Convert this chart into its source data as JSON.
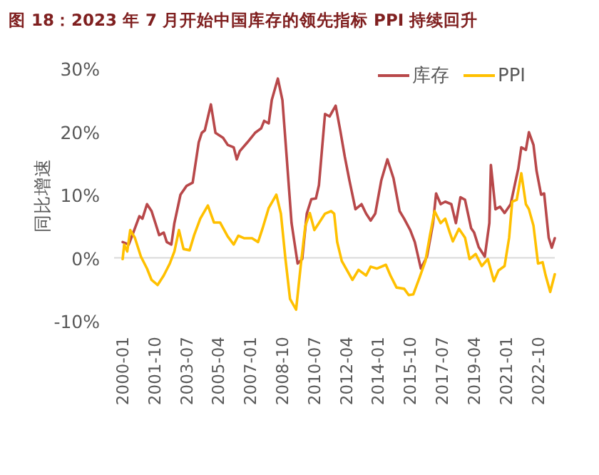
{
  "chart_data": {
    "type": "line",
    "title": "图 18：2023 年 7 月开始中国库存的领先指标 PPI 持续回升",
    "ylabel": "同比增速",
    "xlim": [
      "2000-01",
      "2023-09"
    ],
    "xticks": [
      "2000-01",
      "2001-10",
      "2003-07",
      "2005-04",
      "2007-01",
      "2008-10",
      "2010-07",
      "2012-04",
      "2014-01",
      "2015-10",
      "2017-07",
      "2019-04",
      "2021-01",
      "2022-10"
    ],
    "ylim": [
      -10,
      30
    ],
    "yticks": [
      {
        "value": -10,
        "label": "-10%"
      },
      {
        "value": 0,
        "label": "0%"
      },
      {
        "value": 10,
        "label": "10%"
      },
      {
        "value": 20,
        "label": "20%"
      },
      {
        "value": 30,
        "label": "30%"
      }
    ],
    "legend": "top right",
    "marker": "none",
    "line_style": "solid",
    "series": [
      {
        "name": "库存",
        "color": "#b8484a",
        "x": [
          "2000-01",
          "2000-05",
          "2000-08",
          "2000-12",
          "2001-02",
          "2001-05",
          "2001-08",
          "2001-10",
          "2002-01",
          "2002-04",
          "2002-06",
          "2002-09",
          "2002-11",
          "2003-03",
          "2003-07",
          "2003-11",
          "2004-03",
          "2004-05",
          "2004-07",
          "2004-11",
          "2005-02",
          "2005-07",
          "2005-10",
          "2006-02",
          "2006-04",
          "2006-06",
          "2006-11",
          "2007-04",
          "2007-08",
          "2007-10",
          "2008-01",
          "2008-03",
          "2008-07",
          "2008-10",
          "2009-01",
          "2009-04",
          "2009-08",
          "2009-11",
          "2010-02",
          "2010-05",
          "2010-08",
          "2010-10",
          "2011-02",
          "2011-05",
          "2011-09",
          "2011-12",
          "2012-03",
          "2012-06",
          "2012-10",
          "2013-02",
          "2013-05",
          "2013-08",
          "2013-11",
          "2014-03",
          "2014-07",
          "2014-11",
          "2015-03",
          "2015-06",
          "2015-10",
          "2016-01",
          "2016-05",
          "2016-09",
          "2017-01",
          "2017-03",
          "2017-06",
          "2017-09",
          "2018-01",
          "2018-04",
          "2018-07",
          "2018-10",
          "2019-02",
          "2019-04",
          "2019-07",
          "2019-11",
          "2020-02",
          "2020-03",
          "2020-06",
          "2020-09",
          "2020-12",
          "2021-04",
          "2021-07",
          "2021-09",
          "2021-11",
          "2022-02",
          "2022-04",
          "2022-07",
          "2022-09",
          "2022-12",
          "2023-02",
          "2023-05",
          "2023-07",
          "2023-09"
        ],
        "values": [
          2.5,
          2.1,
          4.0,
          6.6,
          6.2,
          8.5,
          7.4,
          5.9,
          3.6,
          4.0,
          2.5,
          2.1,
          5.5,
          10.0,
          11.4,
          11.9,
          18.3,
          19.8,
          20.2,
          24.3,
          19.8,
          19.0,
          17.9,
          17.5,
          15.6,
          16.9,
          18.3,
          19.8,
          20.5,
          21.7,
          21.3,
          25.0,
          28.4,
          25.0,
          15.3,
          5.5,
          -0.9,
          -0.2,
          7.0,
          9.3,
          9.4,
          11.5,
          22.8,
          22.4,
          24.1,
          20.2,
          16.0,
          12.3,
          7.7,
          8.5,
          7.0,
          5.9,
          7.0,
          12.3,
          15.6,
          12.6,
          7.4,
          6.2,
          4.4,
          2.5,
          -1.7,
          0.2,
          5.5,
          10.2,
          8.5,
          8.9,
          8.5,
          5.5,
          9.6,
          9.2,
          4.7,
          4.0,
          1.7,
          0.2,
          5.5,
          14.7,
          7.7,
          8.1,
          7.1,
          8.5,
          11.9,
          14.1,
          17.5,
          17.1,
          19.9,
          17.9,
          13.8,
          10.0,
          10.2,
          3.2,
          1.6,
          3.1
        ]
      },
      {
        "name": "PPI",
        "color": "#ffc000",
        "x": [
          "2000-01",
          "2000-02",
          "2000-04",
          "2000-06",
          "2000-09",
          "2001-01",
          "2001-05",
          "2001-08",
          "2001-12",
          "2002-04",
          "2002-08",
          "2002-11",
          "2003-02",
          "2003-05",
          "2003-09",
          "2003-12",
          "2004-04",
          "2004-09",
          "2005-01",
          "2005-05",
          "2005-10",
          "2006-02",
          "2006-05",
          "2006-09",
          "2007-02",
          "2007-06",
          "2007-09",
          "2008-01",
          "2008-06",
          "2008-09",
          "2008-12",
          "2009-03",
          "2009-07",
          "2009-10",
          "2010-01",
          "2010-04",
          "2010-07",
          "2010-10",
          "2011-02",
          "2011-06",
          "2011-08",
          "2011-10",
          "2012-01",
          "2012-08",
          "2012-12",
          "2013-05",
          "2013-08",
          "2013-12",
          "2014-06",
          "2014-09",
          "2015-01",
          "2015-06",
          "2015-09",
          "2015-12",
          "2016-04",
          "2016-08",
          "2016-11",
          "2017-02",
          "2017-06",
          "2017-09",
          "2017-12",
          "2018-02",
          "2018-06",
          "2018-10",
          "2019-01",
          "2019-05",
          "2019-09",
          "2020-01",
          "2020-05",
          "2020-08",
          "2020-12",
          "2021-03",
          "2021-05",
          "2021-08",
          "2021-11",
          "2022-02",
          "2022-04",
          "2022-07",
          "2022-10",
          "2023-01",
          "2023-03",
          "2023-06",
          "2023-09"
        ],
        "values": [
          -0.2,
          2.1,
          1.0,
          4.4,
          3.2,
          0.2,
          -1.7,
          -3.5,
          -4.3,
          -2.8,
          -0.9,
          1.0,
          4.4,
          1.4,
          1.2,
          3.6,
          6.2,
          8.3,
          5.6,
          5.6,
          3.4,
          2.1,
          3.5,
          3.1,
          3.1,
          2.5,
          4.7,
          7.9,
          10.0,
          7.0,
          -0.2,
          -6.5,
          -8.2,
          -1.3,
          5.0,
          7.1,
          4.4,
          5.5,
          7.0,
          7.4,
          7.0,
          2.5,
          -0.5,
          -3.5,
          -1.9,
          -2.8,
          -1.4,
          -1.7,
          -1.1,
          -2.8,
          -4.7,
          -4.9,
          -5.9,
          -5.8,
          -3.2,
          -0.5,
          3.6,
          7.4,
          5.5,
          6.2,
          4.0,
          2.6,
          4.6,
          3.2,
          -0.2,
          0.6,
          -1.3,
          -0.2,
          -3.7,
          -2.0,
          -1.3,
          3.2,
          8.9,
          9.2,
          13.4,
          8.5,
          7.7,
          5.1,
          -0.9,
          -0.7,
          -2.8,
          -5.4,
          -2.6
        ]
      }
    ]
  }
}
